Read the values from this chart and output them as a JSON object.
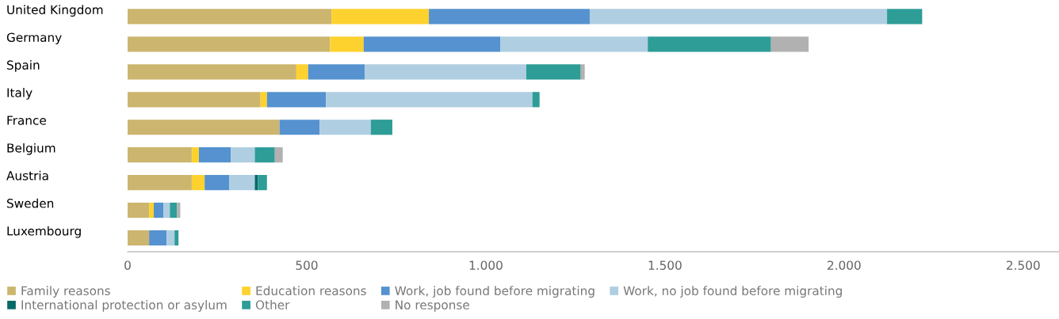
{
  "chart_data": {
    "type": "bar",
    "orientation": "horizontal",
    "stacked": true,
    "categories": [
      "United Kingdom",
      "Germany",
      "Spain",
      "Italy",
      "France",
      "Belgium",
      "Austria",
      "Sweden",
      "Luxembourg"
    ],
    "series": [
      {
        "name": "Family reasons",
        "color": "#ccb56e",
        "values": [
          569,
          565,
          471,
          371,
          424,
          179,
          179,
          60,
          60
        ]
      },
      {
        "name": "Education reasons",
        "color": "#fdd22e",
        "values": [
          272,
          94,
          33,
          18,
          0,
          20,
          36,
          13,
          0
        ]
      },
      {
        "name": "Work, job found before migrating",
        "color": "#5592cf",
        "values": [
          449,
          382,
          158,
          165,
          112,
          89,
          69,
          27,
          49
        ]
      },
      {
        "name": "Work, no job found before migrating",
        "color": "#afcee1",
        "values": [
          830,
          411,
          451,
          576,
          143,
          67,
          71,
          18,
          22
        ]
      },
      {
        "name": "International protection or asylum",
        "color": "#056a68",
        "values": [
          0,
          0,
          0,
          0,
          0,
          0,
          9,
          0,
          0
        ]
      },
      {
        "name": "Other",
        "color": "#2e9c97",
        "values": [
          98,
          344,
          152,
          20,
          60,
          56,
          25,
          20,
          11
        ]
      },
      {
        "name": "No response",
        "color": "#b1b1b1",
        "values": [
          0,
          105,
          11,
          0,
          0,
          22,
          0,
          9,
          0
        ]
      }
    ],
    "xlim": [
      0,
      2600
    ],
    "xticks": [
      0,
      500,
      {
        "value": 1000,
        "label": "1.000"
      },
      {
        "value": 1500,
        "label": "1.500"
      },
      {
        "value": 2000,
        "label": "2.000"
      },
      {
        "value": 2500,
        "label": "2.500"
      }
    ],
    "grid": false,
    "legend": "bottom"
  }
}
